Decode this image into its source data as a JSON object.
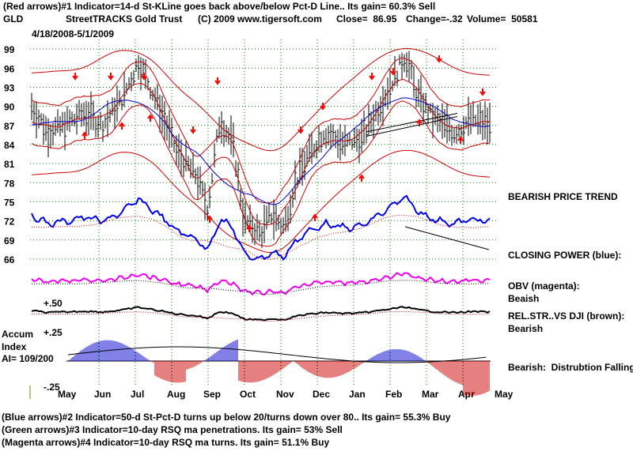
{
  "header": {
    "line1": "(Red arrows)#1 Indicator=14-d St-KLine goes back above/below Pct-D Line.. Its gain= 60.3% Sell",
    "ticker": "GLD",
    "name": "StreetTRACKS Gold Trust",
    "copyright": "(C) 2009 www.tigersoft.com",
    "close": "Close=  86.95",
    "change": "Change=-.32",
    "volume": "Volume=  50581",
    "date_range": "4/18/2008-5/1/2009"
  },
  "labels": {
    "bearish_trend": "BEARISH PRICE TREND",
    "closing_power": "CLOSING POWER (blue):",
    "obv": "OBV (magenta):",
    "obv_state": "Beaish",
    "relstr": "REL.STR..VS DJI (brown):",
    "relstr_state": "Bearish",
    "accum_title": "Accum",
    "accum_index": "Index",
    "accum_value": "AI= 109/200",
    "distribution": "Bearish:  Distrubtion Falling.",
    "plus50": "+.50",
    "plus25": "+.25",
    "minus25": "-.25"
  },
  "footer": {
    "line1": "(Blue arrows)#2 Indicator=50-d St-Pct-D turns up below 20/turns down over 80.. Its gain= 55.3% Buy",
    "line2": "(Green arrows)#3 Indicator=10-day RSQ ma penetrations. Its gain= 53% Sell",
    "line3": "(Magenta arrows)#4 Indicator=10-day RSQ ma turns. Its gain= 51.1% Buy"
  },
  "colors": {
    "price": "#000000",
    "bands": "#cc0000",
    "ma50": "#0000cc",
    "closing_power": "#0000ee",
    "obv": "#ee00ee",
    "relstr": "#000000",
    "accum_pos": "#0000cc",
    "accum_neg": "#cc0000",
    "arrows": "#ff0000",
    "grid": "#008000"
  },
  "chart_data": {
    "type": "line",
    "x_categories": [
      "May",
      "Jun",
      "Jul",
      "Aug",
      "Sep",
      "Oct",
      "Nov",
      "Dec",
      "Jan",
      "Feb",
      "Mar",
      "Apr",
      "May"
    ],
    "y_ticks": [
      99,
      96,
      93,
      90,
      87,
      84,
      81,
      78,
      75,
      72,
      69,
      66
    ],
    "ylim": [
      65,
      101
    ],
    "price_series": {
      "name": "",
      "dates": [
        "2008-04-18",
        "2008-05-01",
        "2008-05-15",
        "2008-06-01",
        "2008-06-15",
        "2008-07-01",
        "2008-07-15",
        "2008-08-01",
        "2008-08-15",
        "2008-09-01",
        "2008-09-10",
        "2008-09-20",
        "2008-10-01",
        "2008-10-10",
        "2008-10-24",
        "2008-11-01",
        "2008-11-12",
        "2008-11-21",
        "2008-12-01",
        "2008-12-15",
        "2009-01-01",
        "2009-01-15",
        "2009-02-01",
        "2009-02-20",
        "2009-03-01",
        "2009-03-15",
        "2009-04-01",
        "2009-04-15",
        "2009-05-01"
      ],
      "values": [
        90,
        86,
        87,
        89,
        87,
        91,
        97,
        90,
        83,
        79,
        74,
        88,
        84,
        72,
        70,
        73,
        71,
        78,
        82,
        86,
        84,
        85,
        91,
        98,
        92,
        88,
        86,
        88,
        86.95
      ]
    },
    "support_line": {
      "from": [
        85.5,
        "Jan"
      ],
      "to": [
        88.7,
        "Apr"
      ]
    },
    "resistance_line_closing_power": {
      "from": "Feb",
      "to": "Apr"
    }
  }
}
